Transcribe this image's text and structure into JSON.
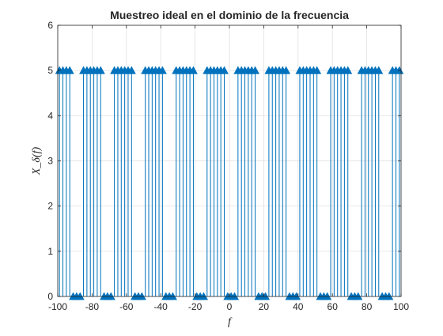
{
  "chart_data": {
    "type": "stem",
    "title": "Muestreo ideal en el dominio de la frecuencia",
    "xlabel": "f",
    "ylabel": "X_δ(f)",
    "xlim": [
      -100,
      100
    ],
    "ylim": [
      0,
      6
    ],
    "xticks": [
      -100,
      -80,
      -60,
      -40,
      -20,
      0,
      20,
      40,
      60,
      80,
      100
    ],
    "yticks": [
      0,
      1,
      2,
      3,
      4,
      5,
      6
    ],
    "grid": true,
    "color": "#0072BD",
    "x": [
      -99,
      -97,
      -95,
      -93,
      -91,
      -89,
      -87,
      -85,
      -83,
      -81,
      -79,
      -77,
      -75,
      -73,
      -71,
      -69,
      -67,
      -65,
      -63,
      -61,
      -59,
      -57,
      -55,
      -53,
      -51,
      -49,
      -47,
      -45,
      -43,
      -41,
      -39,
      -37,
      -35,
      -33,
      -31,
      -29,
      -27,
      -25,
      -23,
      -21,
      -19,
      -17,
      -15,
      -13,
      -11,
      -9,
      -7,
      -5,
      -3,
      -1,
      1,
      3,
      5,
      7,
      9,
      11,
      13,
      15,
      17,
      19,
      21,
      23,
      25,
      27,
      29,
      31,
      33,
      35,
      37,
      39,
      41,
      43,
      45,
      47,
      49,
      51,
      53,
      55,
      57,
      59,
      61,
      63,
      65,
      67,
      69,
      71,
      73,
      75,
      77,
      79,
      81,
      83,
      85,
      87,
      89,
      91,
      93,
      95,
      97,
      99
    ],
    "y": [
      5,
      5,
      5,
      5,
      0,
      0,
      0,
      5,
      5,
      5,
      5,
      5,
      5,
      0,
      0,
      0,
      5,
      5,
      5,
      5,
      5,
      5,
      0,
      0,
      0,
      5,
      5,
      5,
      5,
      5,
      5,
      0,
      0,
      0,
      5,
      5,
      5,
      5,
      5,
      5,
      0,
      0,
      0,
      5,
      5,
      5,
      5,
      5,
      5,
      0,
      0,
      0,
      5,
      5,
      5,
      5,
      5,
      5,
      0,
      0,
      0,
      5,
      5,
      5,
      5,
      5,
      5,
      0,
      0,
      0,
      5,
      5,
      5,
      5,
      5,
      5,
      0,
      0,
      0,
      5,
      5,
      5,
      5,
      5,
      5,
      0,
      0,
      0,
      5,
      5,
      5,
      5,
      5,
      5,
      0,
      0,
      0,
      5,
      5,
      5
    ]
  }
}
